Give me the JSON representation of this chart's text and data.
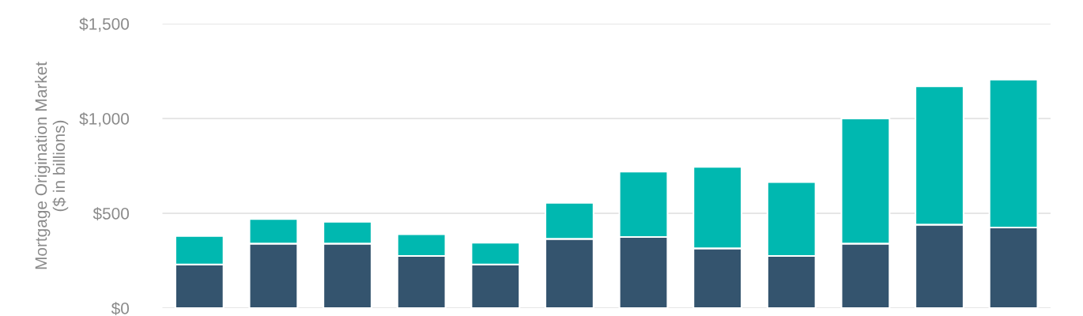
{
  "chart_data": {
    "type": "bar",
    "stacked": true,
    "ylabel": "Mortgage Origination Market\n($ in billions)",
    "categories": [
      null,
      null,
      null,
      null,
      null,
      null,
      null,
      null,
      null,
      null,
      null,
      null
    ],
    "series": [
      {
        "color": "#34546e",
        "values": [
          230,
          340,
          340,
          275,
          230,
          365,
          375,
          315,
          275,
          340,
          440,
          425
        ]
      },
      {
        "color": "#00b8b0",
        "values": [
          150,
          130,
          115,
          115,
          115,
          190,
          345,
          430,
          390,
          660,
          730,
          780
        ]
      }
    ],
    "ylim": [
      0,
      1500
    ],
    "yticks": [
      {
        "value": 0,
        "label": "$0"
      },
      {
        "value": 500,
        "label": "$500"
      },
      {
        "value": 1000,
        "label": "$1,000"
      },
      {
        "value": 1500,
        "label": "$1,500"
      }
    ],
    "grid": "y",
    "tick_labels": "y"
  }
}
